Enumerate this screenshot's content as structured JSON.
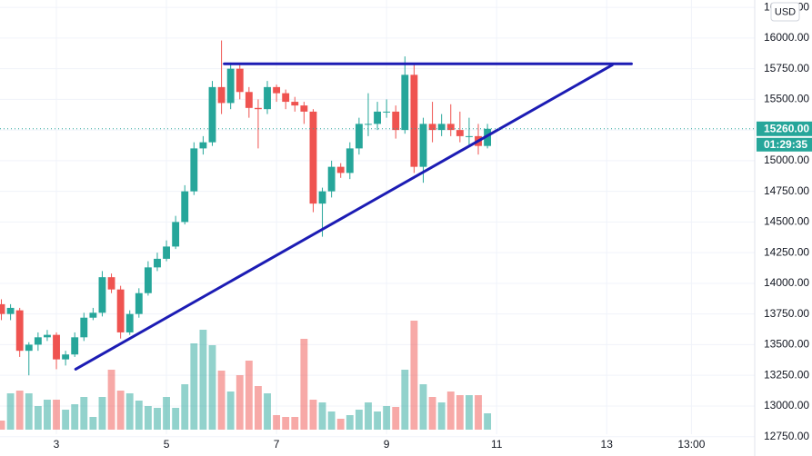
{
  "chart_data": {
    "type": "candlestick",
    "currency": "USD",
    "last_price": 15260,
    "last_price_label": "15260.00",
    "countdown": "01:29:35",
    "up_color": "#26a69a",
    "down_color": "#ef5350",
    "line_color": "#1c1cb4",
    "xlim": [
      1.975,
      15.69
    ],
    "ylim": [
      12770,
      16310
    ],
    "xticks": [
      3,
      5,
      7,
      9,
      11,
      13,
      {
        "value": 14.54,
        "label": "13:00"
      }
    ],
    "yticks": [
      {
        "value": 12750,
        "label": "12750.00"
      },
      {
        "value": 13000,
        "label": "13000.00"
      },
      {
        "value": 13250,
        "label": "13250.00"
      },
      {
        "value": 13500,
        "label": "13500.00"
      },
      {
        "value": 13750,
        "label": "13750.00"
      },
      {
        "value": 14000,
        "label": "14000.00"
      },
      {
        "value": 14250,
        "label": "14250.00"
      },
      {
        "value": 14500,
        "label": "14500.00"
      },
      {
        "value": 14750,
        "label": "14750.00"
      },
      {
        "value": 15000,
        "label": "15000.00"
      },
      {
        "value": 15250,
        "label": "15250.00"
      },
      {
        "value": 15500,
        "label": "15500.00"
      },
      {
        "value": 15750,
        "label": "15750.00"
      },
      {
        "value": 16000,
        "label": "16000.00"
      },
      {
        "value": 16250,
        "label": "16250.00"
      }
    ],
    "grid": true,
    "x": [
      2,
      2.1667,
      2.3333,
      2.5,
      2.6667,
      2.8333,
      3,
      3.1667,
      3.3333,
      3.5,
      3.6667,
      3.8333,
      4,
      4.1667,
      4.3333,
      4.5,
      4.6667,
      4.8333,
      5,
      5.1667,
      5.3333,
      5.5,
      5.6667,
      5.8333,
      6,
      6.1667,
      6.3333,
      6.5,
      6.6667,
      6.8333,
      7,
      7.1667,
      7.3333,
      7.5,
      7.6667,
      7.8333,
      8,
      8.1667,
      8.3333,
      8.5,
      8.6667,
      8.8333,
      9,
      9.1667,
      9.3333,
      9.5,
      9.6667,
      9.8333,
      10,
      10.1667,
      10.3333,
      10.5,
      10.6667,
      10.8333
    ],
    "open": [
      13830,
      13750,
      13780,
      13450,
      13500,
      13560,
      13580,
      13380,
      13420,
      13560,
      13720,
      13760,
      14050,
      13950,
      13600,
      13750,
      13920,
      14130,
      14200,
      14300,
      14500,
      14750,
      15100,
      15150,
      15600,
      15470,
      15750,
      15560,
      15430,
      15420,
      15600,
      15550,
      15480,
      15450,
      15400,
      14650,
      14750,
      14950,
      14900,
      15100,
      15300,
      15300,
      15400,
      15400,
      15250,
      15700,
      14950,
      15300,
      15250,
      15300,
      15250,
      15200,
      15200,
      15120
    ],
    "high": [
      13870,
      13830,
      13800,
      13520,
      13600,
      13620,
      13600,
      13450,
      13600,
      13760,
      13800,
      14100,
      14080,
      13980,
      13780,
      13960,
      14180,
      14250,
      14350,
      14550,
      14800,
      15150,
      15200,
      15650,
      15980,
      15800,
      15780,
      15600,
      15500,
      15650,
      15620,
      15580,
      15520,
      15480,
      15420,
      14780,
      15000,
      14980,
      15150,
      15350,
      15550,
      15480,
      15500,
      15450,
      15850,
      15780,
      15350,
      15480,
      15380,
      15460,
      15400,
      15350,
      15300,
      15300
    ],
    "low": [
      13700,
      13700,
      13400,
      13250,
      13450,
      13530,
      13300,
      13330,
      13400,
      13530,
      13700,
      13730,
      13920,
      13550,
      13580,
      13720,
      13900,
      14100,
      14180,
      14280,
      14480,
      14720,
      15050,
      15120,
      15380,
      15420,
      15500,
      15350,
      15100,
      15380,
      15480,
      15420,
      15400,
      15300,
      14580,
      14380,
      14700,
      14860,
      14850,
      15050,
      15200,
      15250,
      15350,
      15180,
      15220,
      14900,
      14820,
      15150,
      15200,
      15200,
      15150,
      15120,
      15050,
      15100
    ],
    "close": [
      13750,
      13800,
      13450,
      13500,
      13560,
      13580,
      13380,
      13420,
      13560,
      13720,
      13760,
      14050,
      13950,
      13600,
      13750,
      13920,
      14130,
      14200,
      14300,
      14500,
      14750,
      15100,
      15150,
      15600,
      15470,
      15750,
      15560,
      15430,
      15420,
      15600,
      15550,
      15480,
      15450,
      15400,
      14650,
      14750,
      14950,
      14900,
      15100,
      15300,
      15300,
      15400,
      15400,
      15250,
      15700,
      14950,
      15300,
      15250,
      15300,
      15250,
      15200,
      15200,
      15120,
      15260
    ],
    "volume": [
      10,
      40,
      43,
      40,
      26,
      33,
      33,
      22,
      28,
      36,
      14,
      36,
      66,
      43,
      40,
      32,
      26,
      24,
      36,
      24,
      50,
      95,
      110,
      93,
      65,
      42,
      60,
      76,
      48,
      40,
      16,
      14,
      14,
      100,
      33,
      30,
      20,
      12,
      16,
      22,
      30,
      20,
      26,
      25,
      66,
      120,
      50,
      36,
      30,
      42,
      38,
      38,
      38,
      18
    ],
    "lines": [
      {
        "x": [
          6.05,
          13.45
        ],
        "y": [
          15790,
          15790
        ]
      },
      {
        "x": [
          3.35,
          13.1
        ],
        "y": [
          13300,
          15780
        ]
      }
    ]
  }
}
